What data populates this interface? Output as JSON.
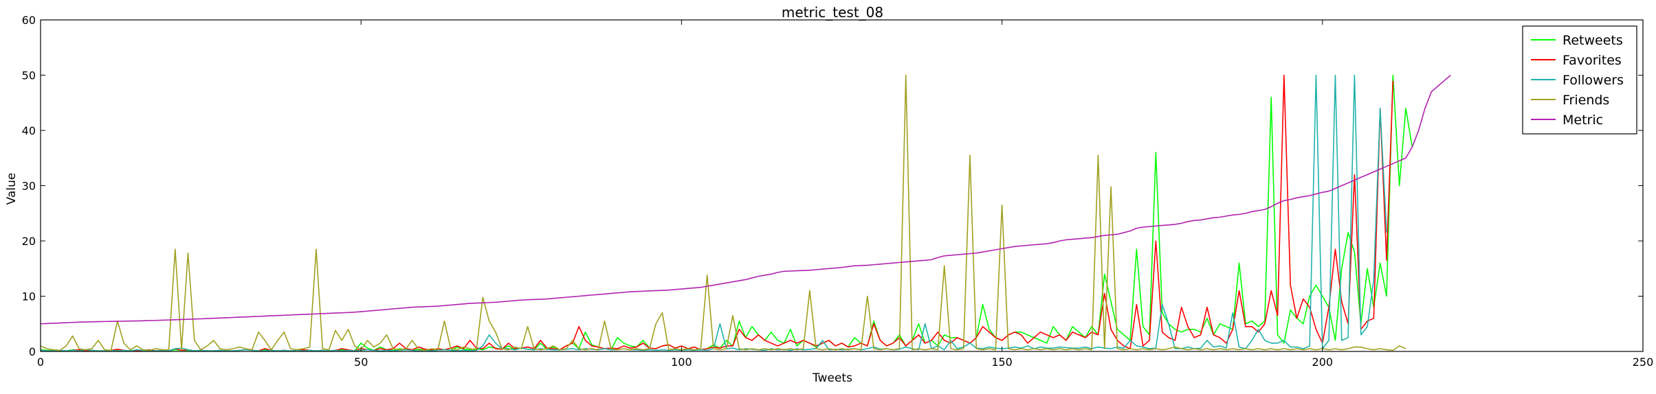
{
  "chart_data": {
    "type": "line",
    "title": "metric_test_08",
    "xlabel": "Tweets",
    "ylabel": "Value",
    "xlim": [
      0,
      250
    ],
    "ylim": [
      0,
      60
    ],
    "xticks": [
      0,
      50,
      100,
      150,
      200,
      250
    ],
    "yticks": [
      0,
      10,
      20,
      30,
      40,
      50,
      60
    ],
    "grid": false,
    "legend_position": "top-right",
    "series": [
      {
        "name": "Retweets",
        "color": "#00ff00",
        "values": [
          0.3,
          0.2,
          0.2,
          0.1,
          0.1,
          0.3,
          0.2,
          0.1,
          0.2,
          0.1,
          0.1,
          0.2,
          0.3,
          0.2,
          0.1,
          0.1,
          0.2,
          0.1,
          0.1,
          0.2,
          0.1,
          0.3,
          0.2,
          0.2,
          0.1,
          0.2,
          0.1,
          0.1,
          0.2,
          0.1,
          0.1,
          0.2,
          0.3,
          0.2,
          0.1,
          0.3,
          0.2,
          0.1,
          0.2,
          0.1,
          0.2,
          0.3,
          0.2,
          0.1,
          0.2,
          0.1,
          0.2,
          0.3,
          0.2,
          0.1,
          1.5,
          0.6,
          0.2,
          0.8,
          0.3,
          0.2,
          0.5,
          0.3,
          0.2,
          0.4,
          0.3,
          0.2,
          0.5,
          0.3,
          0.2,
          0.8,
          0.4,
          0.3,
          0.5,
          0.3,
          0.8,
          0.6,
          0.4,
          1.0,
          0.3,
          0.6,
          0.4,
          0.3,
          1.5,
          0.4,
          0.8,
          0.3,
          1.0,
          1.5,
          0.5,
          3.5,
          1.2,
          0.8,
          0.5,
          0.3,
          2.5,
          1.5,
          1.0,
          0.8,
          2.0,
          0.6,
          0.5,
          1.0,
          1.2,
          0.6,
          1.0,
          0.5,
          0.8,
          0.3,
          0.5,
          1.2,
          0.6,
          2.0,
          1.0,
          5.5,
          2.5,
          4.5,
          3.0,
          2.0,
          3.5,
          2.0,
          1.5,
          4.0,
          1.0,
          2.0,
          1.5,
          0.8,
          1.5,
          2.0,
          1.0,
          1.5,
          0.8,
          2.5,
          1.5,
          1.0,
          5.5,
          2.0,
          1.0,
          1.5,
          3.0,
          1.0,
          2.0,
          5.0,
          1.5,
          2.0,
          1.0,
          3.0,
          2.5,
          2.5,
          2.0,
          1.5,
          2.5,
          8.5,
          4.0,
          2.5,
          2.0,
          3.0,
          3.5,
          3.5,
          3.0,
          2.5,
          2.0,
          1.5,
          4.5,
          3.0,
          2.0,
          4.5,
          3.5,
          2.5,
          4.5,
          3.0,
          14.0,
          9.0,
          4.0,
          3.0,
          2.0,
          18.5,
          4.5,
          3.0,
          36.0,
          7.0,
          5.0,
          4.0,
          3.5,
          4.0,
          4.0,
          3.5,
          6.0,
          3.0,
          5.0,
          4.5,
          4.0,
          16.0,
          5.0,
          5.5,
          4.5,
          5.5,
          46.0,
          3.0,
          1.5,
          7.5,
          6.0,
          5.0,
          10.0,
          12.0,
          10.0,
          8.0,
          2.0,
          15.0,
          21.5,
          18.0,
          5.0,
          15.0,
          8.0,
          16.0,
          10.0,
          50.0,
          30.0,
          44.0,
          37.0
        ]
      },
      {
        "name": "Favorites",
        "color": "#ff0000",
        "values": [
          0.2,
          0.1,
          0.1,
          0.2,
          0.1,
          0.2,
          0.3,
          0.1,
          0.2,
          0.1,
          0.1,
          0.2,
          0.4,
          0.2,
          0.1,
          0.1,
          0.2,
          0.3,
          0.1,
          0.2,
          0.1,
          0.5,
          0.2,
          0.3,
          0.1,
          0.2,
          0.1,
          0.1,
          0.2,
          0.1,
          0.1,
          0.2,
          0.3,
          0.2,
          0.1,
          0.5,
          0.2,
          0.1,
          0.2,
          0.1,
          0.2,
          0.3,
          0.2,
          0.1,
          0.2,
          0.1,
          0.2,
          0.5,
          0.3,
          0.1,
          0.5,
          0.3,
          0.2,
          0.5,
          0.3,
          0.5,
          1.5,
          0.5,
          0.3,
          0.8,
          0.4,
          0.3,
          0.5,
          0.3,
          0.6,
          1.0,
          0.5,
          2.0,
          0.6,
          0.5,
          1.5,
          0.5,
          0.4,
          1.5,
          0.5,
          0.6,
          0.8,
          0.5,
          2.0,
          0.6,
          0.5,
          0.3,
          1.0,
          1.5,
          4.5,
          2.0,
          1.0,
          0.8,
          0.5,
          0.6,
          0.5,
          1.0,
          0.6,
          0.8,
          1.5,
          0.6,
          0.5,
          1.0,
          1.2,
          0.6,
          1.0,
          0.5,
          0.8,
          0.3,
          0.5,
          0.8,
          0.6,
          1.0,
          1.0,
          4.0,
          2.5,
          2.0,
          3.0,
          2.0,
          1.5,
          1.0,
          1.5,
          2.0,
          1.5,
          2.0,
          1.5,
          1.0,
          1.5,
          2.0,
          1.0,
          1.5,
          0.8,
          1.0,
          1.5,
          1.0,
          5.0,
          2.0,
          1.0,
          1.5,
          2.5,
          1.0,
          2.0,
          3.0,
          1.5,
          2.0,
          3.5,
          2.0,
          1.5,
          2.5,
          2.0,
          1.5,
          2.5,
          4.5,
          3.5,
          2.5,
          2.0,
          3.0,
          3.5,
          3.0,
          1.5,
          2.5,
          3.5,
          3.0,
          2.5,
          3.0,
          2.0,
          3.5,
          3.0,
          2.5,
          3.5,
          3.0,
          10.5,
          4.0,
          2.0,
          1.0,
          0.5,
          8.5,
          1.0,
          2.0,
          20.0,
          3.5,
          2.5,
          2.0,
          8.0,
          4.5,
          2.5,
          3.0,
          8.0,
          3.0,
          2.5,
          1.5,
          4.0,
          11.0,
          4.5,
          4.5,
          3.5,
          5.0,
          11.0,
          6.5,
          50.0,
          12.0,
          6.0,
          9.5,
          8.0,
          4.0,
          1.5,
          8.0,
          18.5,
          9.0,
          5.0,
          32.0,
          4.0,
          5.5,
          6.0,
          44.0,
          16.5,
          49.0
        ]
      },
      {
        "name": "Followers",
        "color": "#20b2aa",
        "values": [
          0.2,
          0.1,
          0.1,
          0.2,
          0.1,
          0.2,
          0.1,
          0.3,
          0.2,
          0.1,
          0.1,
          0.2,
          0.1,
          0.2,
          0.1,
          0.3,
          0.2,
          0.1,
          0.1,
          0.2,
          0.1,
          0.5,
          0.6,
          0.3,
          0.1,
          0.2,
          0.1,
          0.1,
          0.2,
          0.1,
          0.1,
          0.2,
          0.3,
          0.2,
          0.1,
          0.1,
          0.2,
          0.1,
          0.2,
          0.1,
          0.2,
          0.1,
          0.2,
          0.1,
          0.2,
          0.1,
          0.2,
          0.1,
          0.2,
          0.1,
          0.2,
          0.3,
          0.2,
          0.1,
          0.2,
          0.1,
          0.2,
          0.3,
          0.2,
          0.1,
          0.2,
          0.1,
          0.2,
          0.3,
          0.2,
          0.1,
          0.2,
          0.1,
          0.2,
          1.0,
          3.0,
          1.5,
          0.5,
          0.5,
          0.3,
          0.6,
          0.4,
          0.3,
          0.5,
          0.4,
          0.3,
          0.3,
          0.4,
          0.5,
          0.3,
          0.5,
          0.4,
          0.3,
          0.5,
          0.3,
          0.3,
          0.5,
          0.3,
          0.3,
          0.2,
          0.3,
          0.2,
          0.3,
          0.2,
          0.3,
          0.2,
          0.3,
          0.2,
          0.3,
          0.2,
          0.5,
          5.0,
          0.5,
          0.6,
          0.3,
          0.5,
          0.4,
          0.3,
          0.2,
          0.5,
          0.3,
          0.4,
          0.2,
          0.5,
          0.3,
          0.4,
          0.5,
          2.0,
          0.3,
          0.4,
          0.3,
          0.4,
          0.5,
          0.3,
          0.5,
          0.8,
          0.4,
          0.5,
          0.3,
          0.4,
          0.8,
          0.5,
          0.3,
          5.0,
          0.5,
          1.0,
          0.3,
          2.0,
          0.5,
          0.8,
          1.5,
          0.6,
          0.5,
          0.8,
          0.6,
          0.5,
          0.6,
          0.8,
          0.6,
          1.0,
          0.5,
          0.8,
          0.6,
          0.6,
          0.8,
          0.7,
          0.6,
          0.6,
          0.8,
          0.5,
          0.8,
          0.6,
          0.5,
          0.8,
          0.6,
          2.0,
          1.0,
          0.8,
          0.5,
          0.6,
          8.5,
          5.0,
          0.5,
          0.5,
          0.8,
          0.5,
          0.6,
          2.0,
          0.8,
          1.0,
          0.6,
          7.0,
          0.8,
          0.5,
          2.0,
          4.0,
          2.0,
          1.5,
          1.5,
          2.0,
          0.8,
          0.8,
          0.5,
          1.0,
          50.0,
          0.5,
          2.0,
          50.0,
          2.0,
          2.5,
          50.0,
          3.0,
          4.5,
          13.0,
          44.0,
          21.5
        ]
      },
      {
        "name": "Friends",
        "color": "#a0a020",
        "values": [
          1.0,
          0.5,
          0.3,
          0.2,
          1.0,
          2.8,
          0.5,
          0.3,
          0.5,
          2.0,
          0.3,
          0.2,
          5.5,
          1.5,
          0.3,
          1.0,
          0.3,
          0.2,
          0.5,
          0.3,
          0.3,
          18.5,
          0.3,
          17.8,
          2.0,
          0.3,
          1.0,
          2.0,
          0.5,
          0.3,
          0.5,
          0.8,
          0.5,
          0.3,
          3.5,
          2.0,
          0.3,
          2.0,
          3.5,
          0.5,
          0.3,
          0.5,
          0.8,
          18.5,
          0.5,
          0.3,
          3.8,
          2.0,
          4.0,
          1.0,
          0.3,
          2.0,
          0.8,
          1.5,
          3.0,
          0.5,
          0.3,
          0.5,
          2.0,
          0.3,
          0.2,
          0.5,
          0.3,
          5.5,
          0.5,
          0.3,
          0.8,
          0.5,
          0.3,
          9.8,
          5.5,
          3.5,
          0.5,
          0.3,
          0.8,
          0.5,
          4.5,
          0.5,
          0.3,
          0.5,
          1.0,
          0.3,
          0.5,
          2.0,
          0.5,
          0.3,
          0.5,
          0.3,
          5.5,
          0.5,
          0.3,
          0.5,
          0.3,
          0.5,
          0.3,
          0.5,
          5.0,
          7.0,
          0.3,
          0.5,
          0.3,
          0.5,
          0.3,
          0.5,
          13.8,
          0.5,
          0.3,
          0.5,
          6.5,
          0.5,
          0.3,
          0.5,
          0.3,
          0.5,
          0.3,
          0.5,
          0.3,
          0.5,
          0.3,
          0.5,
          11.0,
          0.5,
          0.3,
          0.5,
          0.3,
          0.5,
          0.3,
          0.5,
          0.3,
          10.0,
          0.5,
          0.3,
          0.5,
          0.3,
          0.5,
          50.0,
          0.3,
          0.5,
          0.3,
          0.5,
          0.3,
          15.5,
          0.5,
          0.3,
          0.5,
          35.5,
          0.5,
          0.3,
          0.5,
          0.3,
          26.5,
          0.5,
          0.3,
          0.5,
          0.3,
          0.5,
          0.3,
          0.5,
          0.3,
          0.5,
          0.3,
          0.5,
          0.3,
          0.5,
          0.3,
          35.5,
          0.5,
          29.8,
          0.5,
          0.3,
          0.5,
          0.3,
          0.5,
          0.3,
          0.5,
          0.3,
          0.5,
          0.8,
          0.5,
          0.3,
          0.5,
          0.3,
          0.5,
          0.3,
          0.5,
          0.3,
          0.5,
          0.3,
          0.5,
          0.3,
          0.5,
          0.3,
          0.5,
          0.3,
          0.5,
          0.3,
          0.5,
          0.3,
          0.5,
          0.3,
          0.5,
          0.3,
          0.5,
          0.3,
          0.5,
          0.8,
          0.8,
          0.5,
          0.3,
          0.5,
          0.3,
          0.2,
          1.0,
          0.5
        ]
      },
      {
        "name": "Metric",
        "color": "#b020b0",
        "values": [
          5.0,
          5.05,
          5.1,
          5.15,
          5.2,
          5.25,
          5.3,
          5.33,
          5.36,
          5.4,
          5.42,
          5.44,
          5.46,
          5.48,
          5.5,
          5.52,
          5.55,
          5.58,
          5.62,
          5.66,
          5.7,
          5.74,
          5.78,
          5.82,
          5.86,
          5.9,
          5.95,
          6.0,
          6.05,
          6.1,
          6.15,
          6.2,
          6.25,
          6.3,
          6.35,
          6.4,
          6.45,
          6.5,
          6.55,
          6.6,
          6.65,
          6.7,
          6.75,
          6.8,
          6.85,
          6.9,
          6.95,
          7.0,
          7.05,
          7.1,
          7.2,
          7.3,
          7.4,
          7.5,
          7.6,
          7.7,
          7.8,
          7.9,
          8.0,
          8.05,
          8.1,
          8.15,
          8.2,
          8.3,
          8.4,
          8.5,
          8.6,
          8.7,
          8.75,
          8.8,
          8.85,
          8.9,
          9.0,
          9.1,
          9.2,
          9.3,
          9.35,
          9.4,
          9.45,
          9.5,
          9.6,
          9.7,
          9.8,
          9.9,
          10.0,
          10.1,
          10.2,
          10.3,
          10.4,
          10.5,
          10.6,
          10.7,
          10.8,
          10.85,
          10.9,
          10.95,
          11.0,
          11.05,
          11.1,
          11.2,
          11.3,
          11.4,
          11.5,
          11.6,
          11.8,
          12.0,
          12.2,
          12.4,
          12.6,
          12.8,
          13.0,
          13.3,
          13.6,
          13.8,
          14.0,
          14.3,
          14.5,
          14.55,
          14.6,
          14.65,
          14.7,
          14.8,
          14.9,
          15.0,
          15.1,
          15.2,
          15.35,
          15.5,
          15.55,
          15.6,
          15.7,
          15.8,
          15.9,
          16.0,
          16.1,
          16.2,
          16.3,
          16.4,
          16.5,
          16.6,
          17.0,
          17.3,
          17.4,
          17.5,
          17.6,
          17.7,
          17.8,
          18.0,
          18.2,
          18.4,
          18.6,
          18.8,
          19.0,
          19.1,
          19.2,
          19.3,
          19.4,
          19.5,
          19.7,
          20.0,
          20.2,
          20.3,
          20.4,
          20.5,
          20.6,
          20.8,
          21.0,
          21.1,
          21.2,
          21.5,
          21.8,
          22.3,
          22.5,
          22.6,
          22.7,
          22.8,
          22.9,
          23.0,
          23.2,
          23.5,
          23.7,
          23.8,
          24.0,
          24.2,
          24.3,
          24.5,
          24.7,
          24.8,
          25.0,
          25.3,
          25.5,
          25.7,
          26.2,
          26.8,
          27.3,
          27.5,
          27.8,
          28.0,
          28.2,
          28.5,
          28.8,
          29.0,
          29.5,
          30.0,
          30.5,
          31.0,
          31.5,
          32.0,
          32.5,
          33.0,
          33.5,
          34.0,
          34.5,
          35.0,
          37.0,
          40.0,
          44.0,
          47.0,
          48.0,
          49.0,
          50.0
        ]
      }
    ]
  }
}
